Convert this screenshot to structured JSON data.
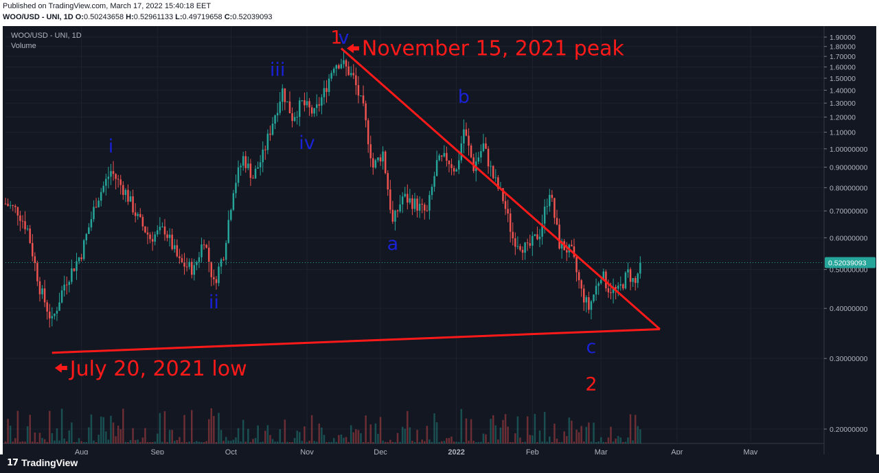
{
  "header": {
    "published": "Published on TradingView.com, March 17, 2022 15:40:18 EET",
    "symbol": "WOO/USD - UNI, 1D",
    "o_label": "O:",
    "o_value": "0.50243658",
    "h_label": "H:",
    "h_value": "0.52961133",
    "l_label": "L:",
    "l_value": "0.49719658",
    "c_label": "C:",
    "c_value": "0.52039093"
  },
  "legend": {
    "symbol": "WOO/USD - UNI, 1D",
    "volume": "Volume"
  },
  "footer": {
    "logo_mark": "17",
    "logo_text": "TradingView"
  },
  "colors": {
    "background": "#131722",
    "up": "#26a69a",
    "down": "#ef5350",
    "annotation": "#ff1a1a",
    "wave": "#1a22d6",
    "last_price_bg": "#26a69a"
  },
  "chart_data": {
    "type": "candlestick",
    "y_scale": "log",
    "ylim": [
      0.19,
      1.93
    ],
    "y_ticks": [
      "1.90000",
      "1.80000",
      "1.70000",
      "1.60000",
      "1.50000",
      "1.40000",
      "1.30000",
      "1.20000",
      "1.10000",
      "1.00000000",
      "0.90000000",
      "0.80000000",
      "0.70000000",
      "0.60000000",
      "0.50000000",
      "0.40000000",
      "0.30000000",
      "0.20000000"
    ],
    "y_tick_values": [
      1.9,
      1.8,
      1.7,
      1.6,
      1.5,
      1.4,
      1.3,
      1.2,
      1.1,
      1.0,
      0.9,
      0.8,
      0.7,
      0.6,
      0.5,
      0.4,
      0.3,
      0.2
    ],
    "x_range": [
      "2021-07-01",
      "2022-05-31"
    ],
    "x_ticks": [
      {
        "label": "Aug",
        "date": "2021-08-01"
      },
      {
        "label": "Sep",
        "date": "2021-09-01"
      },
      {
        "label": "Oct",
        "date": "2021-10-01"
      },
      {
        "label": "Nov",
        "date": "2021-11-01"
      },
      {
        "label": "Dec",
        "date": "2021-12-01"
      },
      {
        "label": "2022",
        "date": "2022-01-01"
      },
      {
        "label": "Feb",
        "date": "2022-02-01"
      },
      {
        "label": "Mar",
        "date": "2022-03-01"
      },
      {
        "label": "Apr",
        "date": "2022-04-01"
      },
      {
        "label": "May",
        "date": "2022-05-01"
      }
    ],
    "last_price": {
      "label": "0.52039093",
      "value": 0.52039093
    },
    "price_path": [
      {
        "date": "2021-07-01",
        "close": 0.73
      },
      {
        "date": "2021-07-06",
        "close": 0.7
      },
      {
        "date": "2021-07-10",
        "close": 0.63
      },
      {
        "date": "2021-07-15",
        "close": 0.45
      },
      {
        "date": "2021-07-20",
        "close": 0.37
      },
      {
        "date": "2021-07-25",
        "close": 0.46
      },
      {
        "date": "2021-08-01",
        "close": 0.55
      },
      {
        "date": "2021-08-07",
        "close": 0.74
      },
      {
        "date": "2021-08-13",
        "close": 0.88
      },
      {
        "date": "2021-08-19",
        "close": 0.78
      },
      {
        "date": "2021-08-24",
        "close": 0.67
      },
      {
        "date": "2021-08-29",
        "close": 0.6
      },
      {
        "date": "2021-09-04",
        "close": 0.63
      },
      {
        "date": "2021-09-10",
        "close": 0.52
      },
      {
        "date": "2021-09-16",
        "close": 0.5
      },
      {
        "date": "2021-09-20",
        "close": 0.6
      },
      {
        "date": "2021-09-24",
        "close": 0.46
      },
      {
        "date": "2021-09-28",
        "close": 0.55
      },
      {
        "date": "2021-10-02",
        "close": 0.8
      },
      {
        "date": "2021-10-06",
        "close": 0.95
      },
      {
        "date": "2021-10-10",
        "close": 0.85
      },
      {
        "date": "2021-10-14",
        "close": 0.96
      },
      {
        "date": "2021-10-18",
        "close": 1.17
      },
      {
        "date": "2021-10-22",
        "close": 1.4
      },
      {
        "date": "2021-10-26",
        "close": 1.2
      },
      {
        "date": "2021-10-30",
        "close": 1.3
      },
      {
        "date": "2021-11-04",
        "close": 1.22
      },
      {
        "date": "2021-11-08",
        "close": 1.38
      },
      {
        "date": "2021-11-12",
        "close": 1.63
      },
      {
        "date": "2021-11-15",
        "close": 1.65
      },
      {
        "date": "2021-11-20",
        "close": 1.5
      },
      {
        "date": "2021-11-24",
        "close": 1.25
      },
      {
        "date": "2021-11-28",
        "close": 0.9
      },
      {
        "date": "2021-12-02",
        "close": 0.98
      },
      {
        "date": "2021-12-06",
        "close": 0.65
      },
      {
        "date": "2021-12-10",
        "close": 0.76
      },
      {
        "date": "2021-12-15",
        "close": 0.73
      },
      {
        "date": "2021-12-20",
        "close": 0.69
      },
      {
        "date": "2021-12-24",
        "close": 0.92
      },
      {
        "date": "2021-12-28",
        "close": 0.95
      },
      {
        "date": "2022-01-01",
        "close": 0.88
      },
      {
        "date": "2022-01-04",
        "close": 1.12
      },
      {
        "date": "2022-01-08",
        "close": 0.9
      },
      {
        "date": "2022-01-12",
        "close": 1.02
      },
      {
        "date": "2022-01-16",
        "close": 0.85
      },
      {
        "date": "2022-01-20",
        "close": 0.75
      },
      {
        "date": "2022-01-24",
        "close": 0.6
      },
      {
        "date": "2022-01-30",
        "close": 0.56
      },
      {
        "date": "2022-02-04",
        "close": 0.62
      },
      {
        "date": "2022-02-08",
        "close": 0.79
      },
      {
        "date": "2022-02-12",
        "close": 0.58
      },
      {
        "date": "2022-02-17",
        "close": 0.55
      },
      {
        "date": "2022-02-21",
        "close": 0.44
      },
      {
        "date": "2022-02-24",
        "close": 0.4
      },
      {
        "date": "2022-03-01",
        "close": 0.49
      },
      {
        "date": "2022-03-04",
        "close": 0.45
      },
      {
        "date": "2022-03-08",
        "close": 0.44
      },
      {
        "date": "2022-03-12",
        "close": 0.49
      },
      {
        "date": "2022-03-15",
        "close": 0.46
      },
      {
        "date": "2022-03-17",
        "close": 0.52
      }
    ],
    "annotations": {
      "wave_labels": [
        {
          "text": "i",
          "date": "2021-08-13",
          "price": 0.98
        },
        {
          "text": "ii",
          "date": "2021-09-24",
          "price": 0.4
        },
        {
          "text": "iii",
          "date": "2021-10-20",
          "price": 1.52
        },
        {
          "text": "iv",
          "date": "2021-11-01",
          "price": 1.0
        },
        {
          "text": "1",
          "date": "2021-11-13",
          "price": 1.83
        },
        {
          "text": "v",
          "date": "2021-11-16",
          "price": 1.83
        },
        {
          "text": "a",
          "date": "2021-12-06",
          "price": 0.56
        },
        {
          "text": "b",
          "date": "2022-01-04",
          "price": 1.3
        },
        {
          "text": "c",
          "date": "2022-02-25",
          "price": 0.31
        },
        {
          "text": "2",
          "date": "2022-02-25",
          "price": 0.25
        }
      ],
      "callouts": [
        {
          "text": "November 15, 2021 peak"
        },
        {
          "text": "July 20, 2021 low"
        }
      ],
      "trendlines": [
        {
          "from": {
            "date": "2021-11-15",
            "price": 1.78
          },
          "to": {
            "date": "2022-03-25",
            "price": 0.355
          }
        },
        {
          "from": {
            "date": "2021-07-20",
            "price": 0.31
          },
          "to": {
            "date": "2022-03-25",
            "price": 0.355
          }
        }
      ]
    }
  }
}
